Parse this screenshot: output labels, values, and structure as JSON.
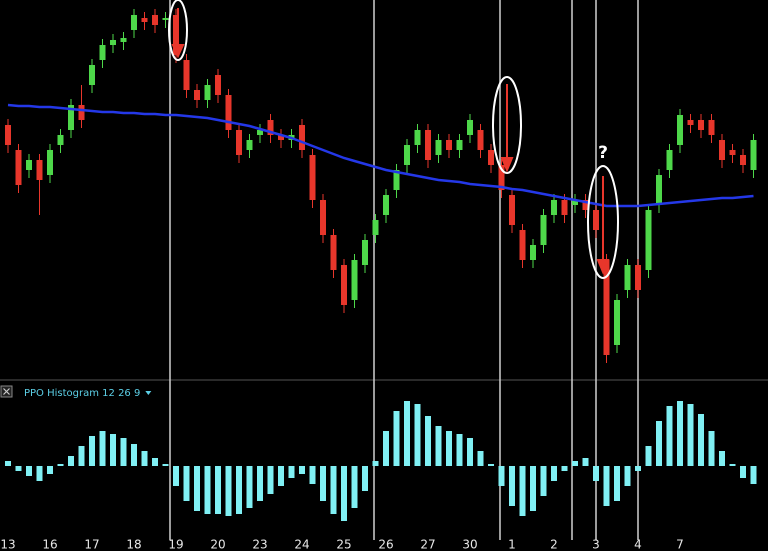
{
  "chart_data": [
    {
      "type": "candlestick",
      "categories": [
        "13",
        null,
        null,
        null,
        "16",
        null,
        null,
        null,
        "17",
        null,
        null,
        null,
        "18",
        null,
        null,
        null,
        "19",
        null,
        null,
        null,
        "20",
        null,
        null,
        null,
        "23",
        null,
        null,
        null,
        "24",
        null,
        null,
        null,
        "25",
        null,
        null,
        null,
        "26",
        null,
        null,
        null,
        "27",
        null,
        null,
        null,
        "30",
        null,
        null,
        null,
        "1",
        null,
        null,
        null,
        "2",
        null,
        null,
        null,
        "3",
        null,
        null,
        null,
        "4",
        null,
        null,
        null,
        "7",
        null,
        null,
        null,
        null,
        null,
        null,
        null
      ],
      "open": [
        245,
        220,
        200,
        210,
        195,
        225,
        240,
        265,
        285,
        310,
        325,
        328,
        340,
        352,
        355,
        350,
        355,
        310,
        280,
        270,
        295,
        275,
        240,
        220,
        235,
        250,
        235,
        230,
        245,
        215,
        170,
        135,
        105,
        70,
        105,
        135,
        155,
        180,
        205,
        225,
        240,
        215,
        230,
        220,
        235,
        240,
        220,
        205,
        175,
        140,
        110,
        125,
        155,
        170,
        165,
        170,
        160,
        110,
        25,
        80,
        105,
        100,
        165,
        200,
        225,
        250,
        250,
        250,
        230,
        220,
        215,
        200
      ],
      "high": [
        251,
        226,
        216,
        216,
        226,
        241,
        271,
        285,
        311,
        331,
        336,
        338,
        361,
        358,
        361,
        358,
        361,
        316,
        286,
        291,
        301,
        281,
        246,
        236,
        246,
        256,
        241,
        241,
        251,
        221,
        176,
        141,
        111,
        116,
        136,
        156,
        181,
        206,
        231,
        246,
        246,
        236,
        236,
        236,
        256,
        246,
        226,
        211,
        181,
        146,
        131,
        161,
        176,
        176,
        176,
        176,
        166,
        116,
        76,
        111,
        111,
        166,
        201,
        226,
        261,
        256,
        256,
        256,
        236,
        226,
        221,
        236
      ],
      "low": [
        217,
        177,
        192,
        155,
        187,
        217,
        232,
        242,
        277,
        302,
        317,
        320,
        332,
        340,
        337,
        342,
        307,
        272,
        262,
        262,
        267,
        232,
        207,
        212,
        227,
        227,
        222,
        222,
        212,
        162,
        127,
        92,
        57,
        62,
        97,
        127,
        147,
        172,
        197,
        217,
        202,
        207,
        212,
        212,
        227,
        212,
        197,
        172,
        137,
        102,
        102,
        117,
        147,
        147,
        157,
        152,
        132,
        7,
        17,
        72,
        72,
        92,
        157,
        192,
        217,
        237,
        232,
        227,
        202,
        207,
        197,
        192
      ],
      "close": [
        225,
        185,
        210,
        190,
        220,
        235,
        265,
        250,
        305,
        325,
        330,
        332,
        355,
        348,
        345,
        352,
        315,
        280,
        270,
        285,
        275,
        240,
        215,
        230,
        240,
        235,
        230,
        235,
        220,
        170,
        135,
        100,
        65,
        110,
        130,
        150,
        175,
        200,
        225,
        240,
        210,
        230,
        220,
        230,
        250,
        220,
        205,
        180,
        145,
        110,
        125,
        155,
        170,
        155,
        170,
        160,
        140,
        15,
        70,
        105,
        80,
        160,
        195,
        220,
        255,
        245,
        240,
        235,
        210,
        215,
        205,
        230
      ],
      "up_color": "#4ed84a",
      "down_color": "#e8362b",
      "moving_average": {
        "color": "#2438e8",
        "values": [
          265,
          264,
          264,
          263,
          263,
          262,
          261,
          260,
          259,
          258,
          258,
          257,
          257,
          256,
          256,
          255,
          255,
          254,
          253,
          252,
          250,
          248,
          246,
          244,
          241,
          238,
          235,
          232,
          228,
          224,
          220,
          216,
          212,
          209,
          206,
          203,
          200,
          198,
          196,
          194,
          192,
          190,
          189,
          188,
          186,
          185,
          184,
          183,
          181,
          180,
          178,
          176,
          174,
          172,
          170,
          168,
          166,
          164,
          164,
          164,
          164,
          165,
          166,
          167,
          168,
          169,
          170,
          171,
          172,
          172,
          173,
          174
        ]
      },
      "ylim": [
        0,
        370
      ],
      "annotations": [
        "?"
      ]
    },
    {
      "type": "bar",
      "title": "PPO Histogram 12 26 9",
      "color": "#80f0f4",
      "title_color": "#5ccfe6",
      "values": [
        5,
        -5,
        -10,
        -15,
        -8,
        2,
        10,
        20,
        30,
        35,
        32,
        28,
        22,
        15,
        8,
        2,
        -20,
        -35,
        -45,
        -48,
        -48,
        -50,
        -48,
        -42,
        -35,
        -28,
        -20,
        -12,
        -8,
        -18,
        -35,
        -48,
        -55,
        -42,
        -25,
        5,
        35,
        55,
        65,
        62,
        50,
        40,
        35,
        32,
        28,
        15,
        2,
        -20,
        -40,
        -50,
        -45,
        -30,
        -15,
        -5,
        5,
        8,
        -15,
        -40,
        -35,
        -20,
        -5,
        20,
        45,
        60,
        65,
        62,
        52,
        35,
        15,
        2,
        -12,
        -18
      ],
      "ylim": [
        -64,
        66
      ]
    }
  ]
}
